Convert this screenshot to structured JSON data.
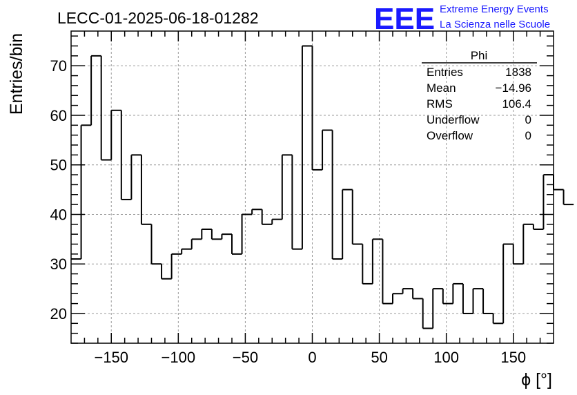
{
  "title": "LECC-01-2025-06-18-01282",
  "logo": {
    "mark": "EEE",
    "line1": "Extreme Energy Events",
    "line2": "La Scienza nelle Scuole",
    "color": "#1a1aff"
  },
  "stats": {
    "name": "Phi",
    "rows": [
      {
        "label": "Entries",
        "value": "1838"
      },
      {
        "label": "Mean",
        "value": "−14.96"
      },
      {
        "label": "RMS",
        "value": "106.4"
      },
      {
        "label": "Underflow",
        "value": "0"
      },
      {
        "label": "Overflow",
        "value": "0"
      }
    ]
  },
  "chart_data": {
    "type": "bar",
    "histogram": true,
    "title": "LECC-01-2025-06-18-01282",
    "xlabel": "ϕ [°]",
    "ylabel": "Entries/bin",
    "xlim": [
      -180,
      180
    ],
    "ylim": [
      14,
      77
    ],
    "bin_width": 7.5,
    "bin_start": -180,
    "values": [
      31,
      58,
      72,
      51,
      61,
      43,
      52,
      38,
      30,
      27,
      32,
      33,
      35,
      37,
      35,
      36,
      32,
      40,
      41,
      38,
      39,
      52,
      33,
      74,
      49,
      57,
      31,
      45,
      34,
      26,
      35,
      22,
      24,
      25,
      23,
      17,
      25,
      22,
      26,
      20,
      25,
      20,
      18,
      34,
      30,
      38,
      37,
      48,
      45,
      42
    ],
    "x_ticks": [
      -150,
      -100,
      -50,
      0,
      50,
      100,
      150
    ],
    "x_tick_labels": [
      "−150",
      "−100",
      "−50",
      "0",
      "50",
      "100",
      "150"
    ],
    "y_ticks": [
      20,
      30,
      40,
      50,
      60,
      70
    ],
    "y_tick_labels": [
      "20",
      "30",
      "40",
      "50",
      "60",
      "70"
    ],
    "grid": true,
    "line_color": "#000000"
  }
}
